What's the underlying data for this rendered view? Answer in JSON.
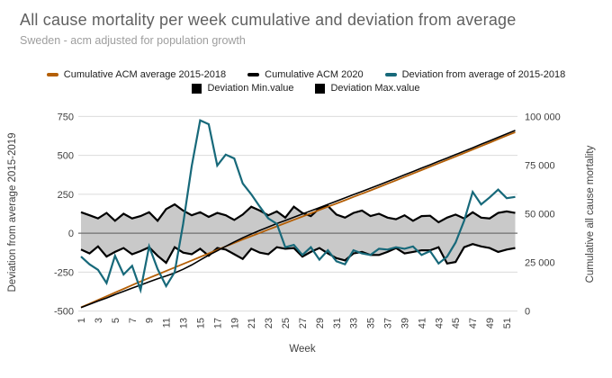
{
  "header": {
    "title": "All cause mortality per week cumulative and deviation from average",
    "subtitle": "Sweden - acm adjusted for population growth"
  },
  "colors": {
    "average_line": "#b45f06",
    "acm2020_line": "#000000",
    "deviation_line": "#17697a",
    "band_fill": "#c9c9c9",
    "band_stroke": "#000000",
    "gridline": "#dcdcdc",
    "zero_line": "#707070",
    "tick_text": "#404040"
  },
  "legend": {
    "rows": [
      [
        {
          "label": "Cumulative ACM average 2015-2018",
          "swatch": "line",
          "color": "#b45f06"
        },
        {
          "label": "Cumulative ACM 2020",
          "swatch": "line",
          "color": "#000000"
        },
        {
          "label": "Deviation from average of 2015-2018",
          "swatch": "line",
          "color": "#17697a"
        }
      ],
      [
        {
          "label": "Deviation Min.value",
          "swatch": "square",
          "color": "#000000"
        },
        {
          "label": "Deviation Max.value",
          "swatch": "square",
          "color": "#000000"
        }
      ]
    ]
  },
  "chart_data": {
    "type": "line",
    "x_axis": {
      "title": "Week",
      "tick_labels": [
        "1",
        "3",
        "5",
        "7",
        "9",
        "11",
        "13",
        "15",
        "17",
        "19",
        "21",
        "23",
        "25",
        "27",
        "29",
        "31",
        "33",
        "35",
        "37",
        "39",
        "41",
        "43",
        "45",
        "47",
        "49",
        "51"
      ],
      "weeks_min": 1,
      "weeks_max": 52
    },
    "left_axis": {
      "title": "Deviation from average 2015-2019",
      "tick_labels": [
        "750",
        "500",
        "250",
        "0",
        "-250",
        "-500"
      ],
      "tick_values": [
        750,
        500,
        250,
        0,
        -250,
        -500
      ],
      "range": [
        -500,
        750
      ],
      "grid": true
    },
    "right_axis": {
      "title": "Cumulative all cause mortality",
      "tick_labels": [
        "100 000",
        "75 000",
        "50 000",
        "25 000",
        "0"
      ],
      "tick_values": [
        100000,
        75000,
        50000,
        25000,
        0
      ],
      "range": [
        0,
        100000
      ],
      "grid": false
    },
    "series": [
      {
        "name": "Cumulative ACM average 2015-2018",
        "axis": "right",
        "style": "line",
        "color": "#b45f06",
        "values": [
          1900,
          3800,
          5700,
          7600,
          9500,
          11400,
          13300,
          15200,
          17000,
          18800,
          20600,
          22400,
          24200,
          26000,
          27800,
          29600,
          31400,
          33200,
          35000,
          36800,
          38480,
          40160,
          41840,
          43520,
          45200,
          46880,
          48560,
          50240,
          51920,
          53600,
          55280,
          56960,
          58640,
          60320,
          62000,
          63680,
          65430,
          67180,
          68930,
          70680,
          72430,
          74180,
          75930,
          77680,
          79430,
          81180,
          82970,
          84760,
          86550,
          88340,
          90130,
          91920
        ]
      },
      {
        "name": "Cumulative ACM 2020",
        "axis": "right",
        "style": "line",
        "color": "#000000",
        "values": [
          1750,
          3450,
          5115,
          6695,
          8450,
          10085,
          11775,
          13310,
          15025,
          16595,
          18055,
          19605,
          21465,
          23695,
          26220,
          28720,
          30955,
          33260,
          35540,
          37660,
          39590,
          41440,
          43215,
          44955,
          46550,
          48200,
          49850,
          51500,
          53160,
          54820,
          56480,
          58140,
          59800,
          61460,
          63120,
          64780,
          66510,
          68240,
          69970,
          71700,
          73430,
          75170,
          76910,
          78650,
          80390,
          82130,
          83910,
          85690,
          87470,
          89250,
          91035,
          92820
        ]
      },
      {
        "name": "Deviation from average of 2015-2018",
        "axis": "left",
        "style": "line",
        "color": "#17697a",
        "values": [
          -150,
          -200,
          -235,
          -320,
          -145,
          -265,
          -210,
          -365,
          -85,
          -230,
          -340,
          -250,
          60,
          430,
          725,
          700,
          435,
          505,
          480,
          320,
          250,
          170,
          95,
          60,
          -90,
          -75,
          -140,
          -90,
          -170,
          -110,
          -180,
          -200,
          -110,
          -130,
          -140,
          -100,
          -105,
          -90,
          -100,
          -85,
          -140,
          -115,
          -195,
          -150,
          -60,
          80,
          265,
          185,
          230,
          280,
          225,
          233
        ]
      },
      {
        "name": "Deviation Min.value",
        "axis": "left",
        "style": "band-edge",
        "color": "#000000",
        "values": [
          -105,
          -130,
          -85,
          -150,
          -120,
          -95,
          -135,
          -115,
          -90,
          -145,
          -190,
          -90,
          -125,
          -135,
          -100,
          -145,
          -95,
          -105,
          -135,
          -165,
          -100,
          -125,
          -135,
          -90,
          -100,
          -95,
          -150,
          -120,
          -95,
          -130,
          -160,
          -175,
          -130,
          -120,
          -140,
          -140,
          -120,
          -95,
          -130,
          -120,
          -110,
          -110,
          -90,
          -195,
          -185,
          -90,
          -70,
          -85,
          -95,
          -120,
          -105,
          -95
        ]
      },
      {
        "name": "Deviation Max.value",
        "axis": "left",
        "style": "band-edge",
        "color": "#000000",
        "values": [
          135,
          115,
          95,
          130,
          80,
          125,
          95,
          110,
          135,
          80,
          155,
          185,
          145,
          115,
          135,
          105,
          130,
          115,
          85,
          120,
          170,
          145,
          115,
          140,
          100,
          170,
          130,
          110,
          160,
          175,
          120,
          100,
          130,
          145,
          110,
          125,
          100,
          90,
          115,
          80,
          110,
          112,
          70,
          100,
          120,
          95,
          135,
          100,
          95,
          130,
          140,
          130
        ]
      }
    ]
  }
}
